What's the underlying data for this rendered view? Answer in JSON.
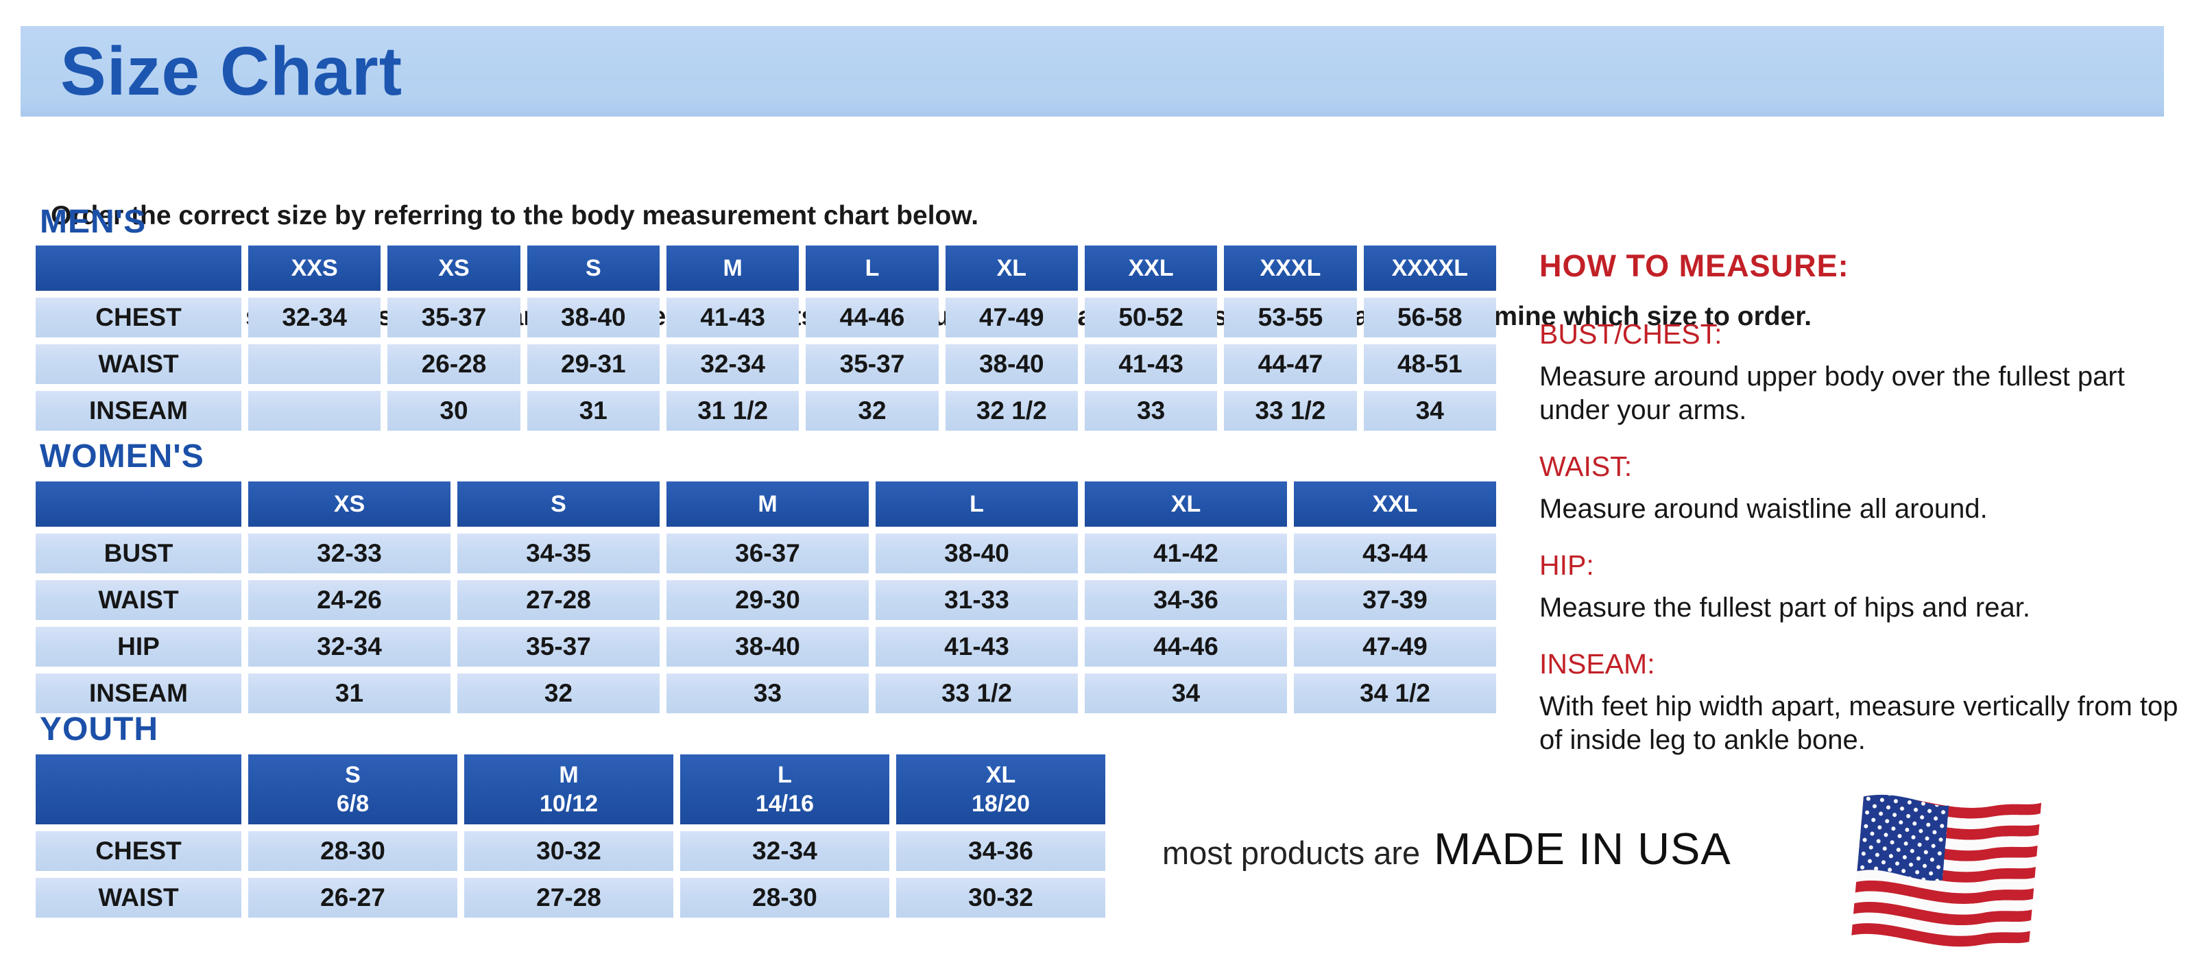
{
  "title": "Size Chart",
  "intro": {
    "line1": "Order the correct size by referring to the body measurement chart below.",
    "line2": "Measurements shown on size chart are body measurements.  Find your body measurements on the chart to determine which size to order."
  },
  "colors": {
    "band_blue": "#b4d1f1",
    "title_blue": "#1c56b0",
    "heading_blue": "#1c50a8",
    "table_header_blue": "#2254a9",
    "table_cell_blue": "#c7daf3",
    "accent_red": "#c22027",
    "flag_red": "#c6202e",
    "flag_canton_blue": "#203b8f"
  },
  "tables": [
    {
      "heading": "MEN'S",
      "header": [
        "",
        "XXS",
        "XS",
        "S",
        "M",
        "L",
        "XL",
        "XXL",
        "XXXL",
        "XXXXL"
      ],
      "rows": [
        [
          "CHEST",
          "32-34",
          "35-37",
          "38-40",
          "41-43",
          "44-46",
          "47-49",
          "50-52",
          "53-55",
          "56-58"
        ],
        [
          "WAIST",
          "",
          "26-28",
          "29-31",
          "32-34",
          "35-37",
          "38-40",
          "41-43",
          "44-47",
          "48-51"
        ],
        [
          "INSEAM",
          "",
          "30",
          "31",
          "31 1/2",
          "32",
          "32 1/2",
          "33",
          "33 1/2",
          "34"
        ]
      ]
    },
    {
      "heading": "WOMEN'S",
      "header": [
        "",
        "XS",
        "S",
        "M",
        "L",
        "XL",
        "XXL"
      ],
      "rows": [
        [
          "BUST",
          "32-33",
          "34-35",
          "36-37",
          "38-40",
          "41-42",
          "43-44"
        ],
        [
          "WAIST",
          "24-26",
          "27-28",
          "29-30",
          "31-33",
          "34-36",
          "37-39"
        ],
        [
          "HIP",
          "32-34",
          "35-37",
          "38-40",
          "41-43",
          "44-46",
          "47-49"
        ],
        [
          "INSEAM",
          "31",
          "32",
          "33",
          "33 1/2",
          "34",
          "34 1/2"
        ]
      ]
    },
    {
      "heading": "YOUTH",
      "header": [
        "",
        "S\n6/8",
        "M\n10/12",
        "L\n14/16",
        "XL\n18/20"
      ],
      "rows": [
        [
          "CHEST",
          "28-30",
          "30-32",
          "32-34",
          "34-36"
        ],
        [
          "WAIST",
          "26-27",
          "27-28",
          "28-30",
          "30-32"
        ]
      ]
    }
  ],
  "how_to_measure": {
    "title": "HOW TO MEASURE:",
    "items": [
      {
        "label": "BUST/CHEST:",
        "text": "Measure around upper body over the fullest part under your arms."
      },
      {
        "label": "WAIST:",
        "text": "Measure around waistline all around."
      },
      {
        "label": "HIP:",
        "text": "Measure the fullest part of hips and rear."
      },
      {
        "label": "INSEAM:",
        "text": "With feet hip width apart, measure vertically from top of inside leg to ankle bone."
      }
    ]
  },
  "footer": {
    "prefix": "most products are",
    "emphasis": "MADE IN USA",
    "flag": "us-flag-icon"
  }
}
